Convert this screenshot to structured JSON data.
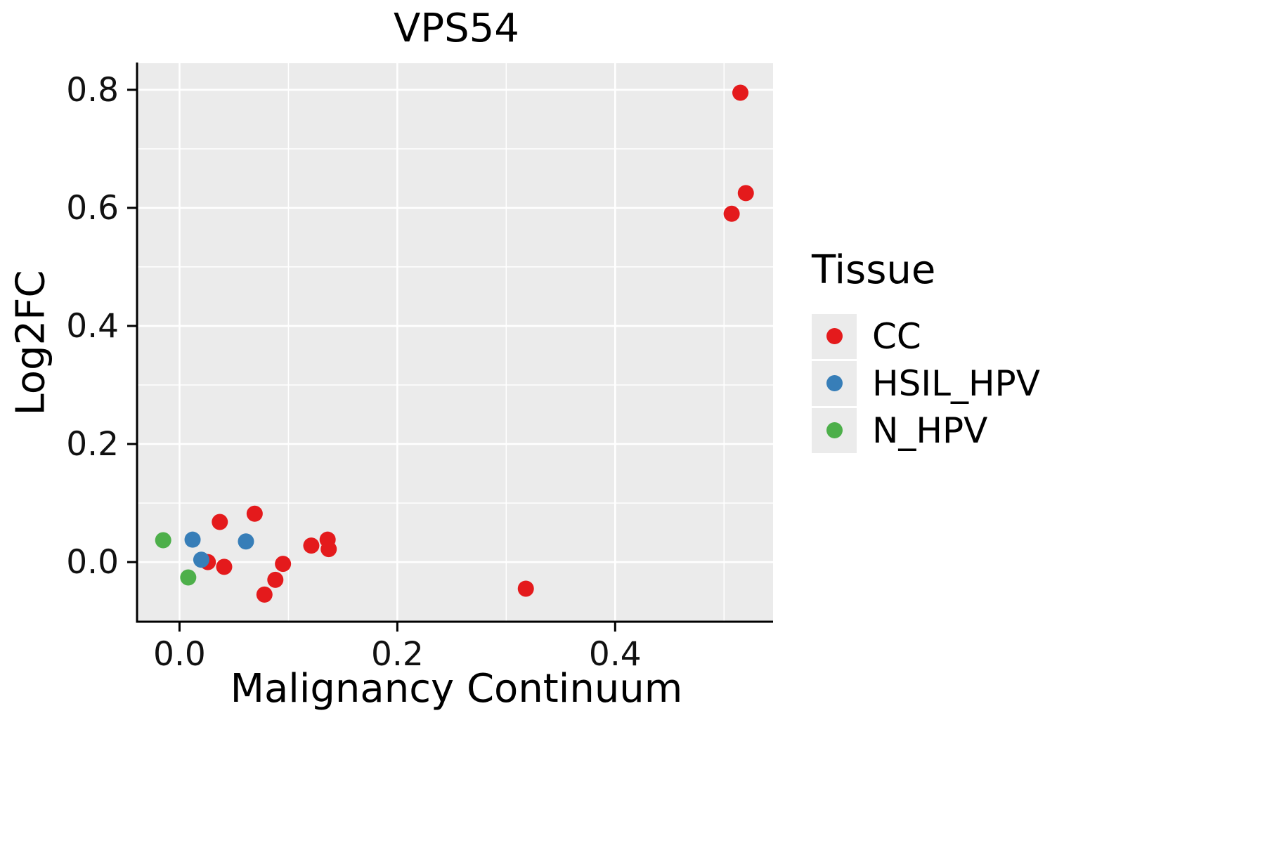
{
  "chart_data": {
    "type": "scatter",
    "title": "VPS54",
    "xlabel": "Malignancy Continuum",
    "ylabel": "Log2FC",
    "xlim": [
      -0.039,
      0.545
    ],
    "ylim": [
      -0.101,
      0.845
    ],
    "x_ticks": [
      0.0,
      0.2,
      0.4
    ],
    "x_tick_labels": [
      "0.0",
      "0.2",
      "0.4"
    ],
    "y_ticks": [
      0.0,
      0.2,
      0.4,
      0.6,
      0.8
    ],
    "y_tick_labels": [
      "0.0",
      "0.2",
      "0.4",
      "0.6",
      "0.8"
    ],
    "x_minor_ticks": [
      0.1,
      0.3,
      0.5
    ],
    "y_minor_ticks": [
      0.1,
      0.3,
      0.5,
      0.7
    ],
    "grid": true,
    "panel_background": "#ebebeb",
    "grid_color": "#ffffff",
    "axis_color": "#000000",
    "point_radius": 11.5,
    "legend": {
      "title": "Tissue",
      "position": "right"
    },
    "series": [
      {
        "name": "CC",
        "color": "#e41a1c",
        "points": [
          [
            0.515,
            0.795
          ],
          [
            0.52,
            0.625
          ],
          [
            0.507,
            0.59
          ],
          [
            0.037,
            0.068
          ],
          [
            0.069,
            0.082
          ],
          [
            0.026,
            0.0
          ],
          [
            0.041,
            -0.008
          ],
          [
            0.078,
            -0.055
          ],
          [
            0.088,
            -0.03
          ],
          [
            0.095,
            -0.003
          ],
          [
            0.121,
            0.028
          ],
          [
            0.136,
            0.038
          ],
          [
            0.137,
            0.022
          ],
          [
            0.318,
            -0.045
          ]
        ]
      },
      {
        "name": "HSIL_HPV",
        "color": "#377eb8",
        "points": [
          [
            0.012,
            0.038
          ],
          [
            0.02,
            0.004
          ],
          [
            0.061,
            0.035
          ]
        ]
      },
      {
        "name": "N_HPV",
        "color": "#4daf4a",
        "points": [
          [
            -0.015,
            0.037
          ],
          [
            0.008,
            -0.026
          ]
        ]
      }
    ]
  }
}
